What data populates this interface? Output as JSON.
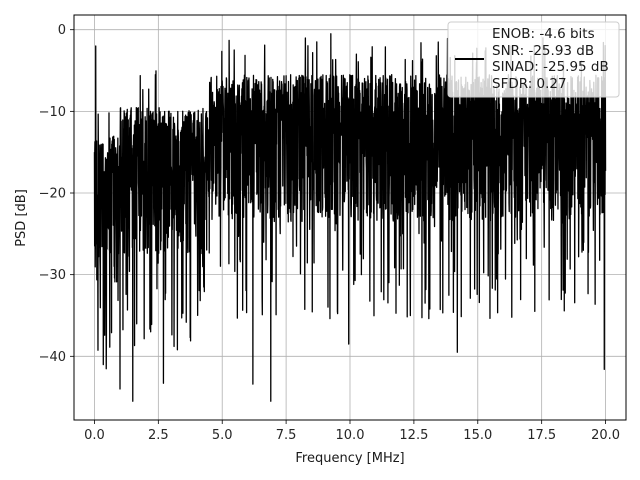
{
  "chart_data": {
    "type": "line",
    "xlabel": "Frequency [MHz]",
    "ylabel": "PSD [dB]",
    "xlim": [
      -0.8,
      20.8
    ],
    "ylim": [
      -47.8,
      1.8
    ],
    "xticks": [
      0.0,
      2.5,
      5.0,
      7.5,
      10.0,
      12.5,
      15.0,
      17.5,
      20.0
    ],
    "xtick_labels": [
      "0.0",
      "2.5",
      "5.0",
      "7.5",
      "10.0",
      "12.5",
      "15.0",
      "17.5",
      "20.0"
    ],
    "yticks": [
      0,
      -10,
      -20,
      -30,
      -40
    ],
    "ytick_labels": [
      "0",
      "−10",
      "−20",
      "−30",
      "−40"
    ],
    "grid": true,
    "legend": {
      "placement": "top-right",
      "entries": [
        "ENOB: -4.6 bits",
        "SNR: -25.93 dB",
        "SINAD: -25.95 dB",
        "SFDR: 0.27"
      ]
    },
    "series": [
      {
        "color": "#000000",
        "x_range": [
          0.0,
          20.0
        ],
        "noise_description_points": [
          {
            "x": 0.0,
            "y": -15.0
          },
          {
            "x": 0.05,
            "y": -2.0
          },
          {
            "x": 0.1,
            "y": -25.0
          },
          {
            "x": 1.0,
            "y": -44.0
          },
          {
            "x": 1.5,
            "y": -45.5
          },
          {
            "x": 2.2,
            "y": -37.0
          },
          {
            "x": 2.7,
            "y": -43.3
          },
          {
            "x": 6.2,
            "y": -43.4
          },
          {
            "x": 6.9,
            "y": -45.5
          },
          {
            "x": 9.95,
            "y": -38.5
          },
          {
            "x": 14.2,
            "y": -39.5
          },
          {
            "x": 19.95,
            "y": -41.6
          }
        ]
      }
    ]
  }
}
